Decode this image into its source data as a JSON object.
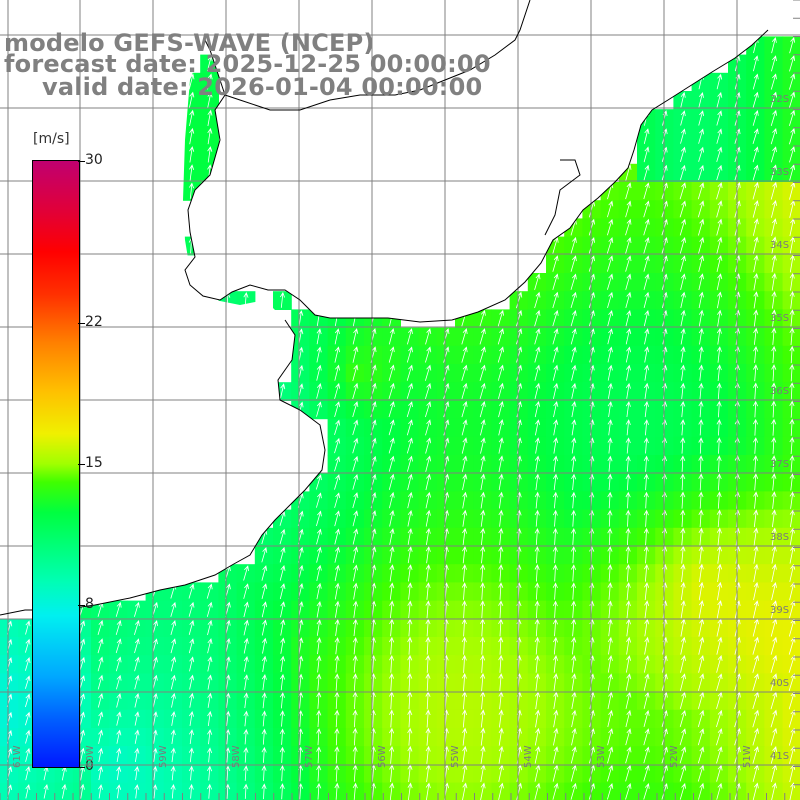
{
  "title": {
    "line1": "modelo GEFS-WAVE (NCEP)",
    "line2": "forecast date: 2025-12-25 00:00:00",
    "line3": "valid date: 2026-01-04 00:00:00"
  },
  "colorbar": {
    "units": "[m/s]",
    "ticks": [
      "30",
      "22",
      "15",
      "8",
      "0"
    ],
    "tick_values": [
      30,
      22,
      15,
      8,
      0
    ],
    "min": 0,
    "max": 30
  },
  "lat_labels": [
    "32S",
    "33S",
    "34S",
    "35S",
    "36S",
    "37S",
    "38S",
    "39S",
    "40S",
    "41S"
  ],
  "lon_labels": [
    "61W",
    "60W",
    "59W",
    "58W",
    "57W",
    "56W",
    "55W",
    "54W",
    "53W",
    "52W",
    "51W"
  ],
  "colors": {
    "land": "#ffffff",
    "grid": "#808080",
    "coastline": "#000000",
    "arrows": "#ffffff",
    "title": "#808080"
  },
  "field": {
    "variable": "wind speed",
    "dominant_range_ms": [
      9,
      16
    ],
    "wind_direction": "from south-southwest"
  }
}
